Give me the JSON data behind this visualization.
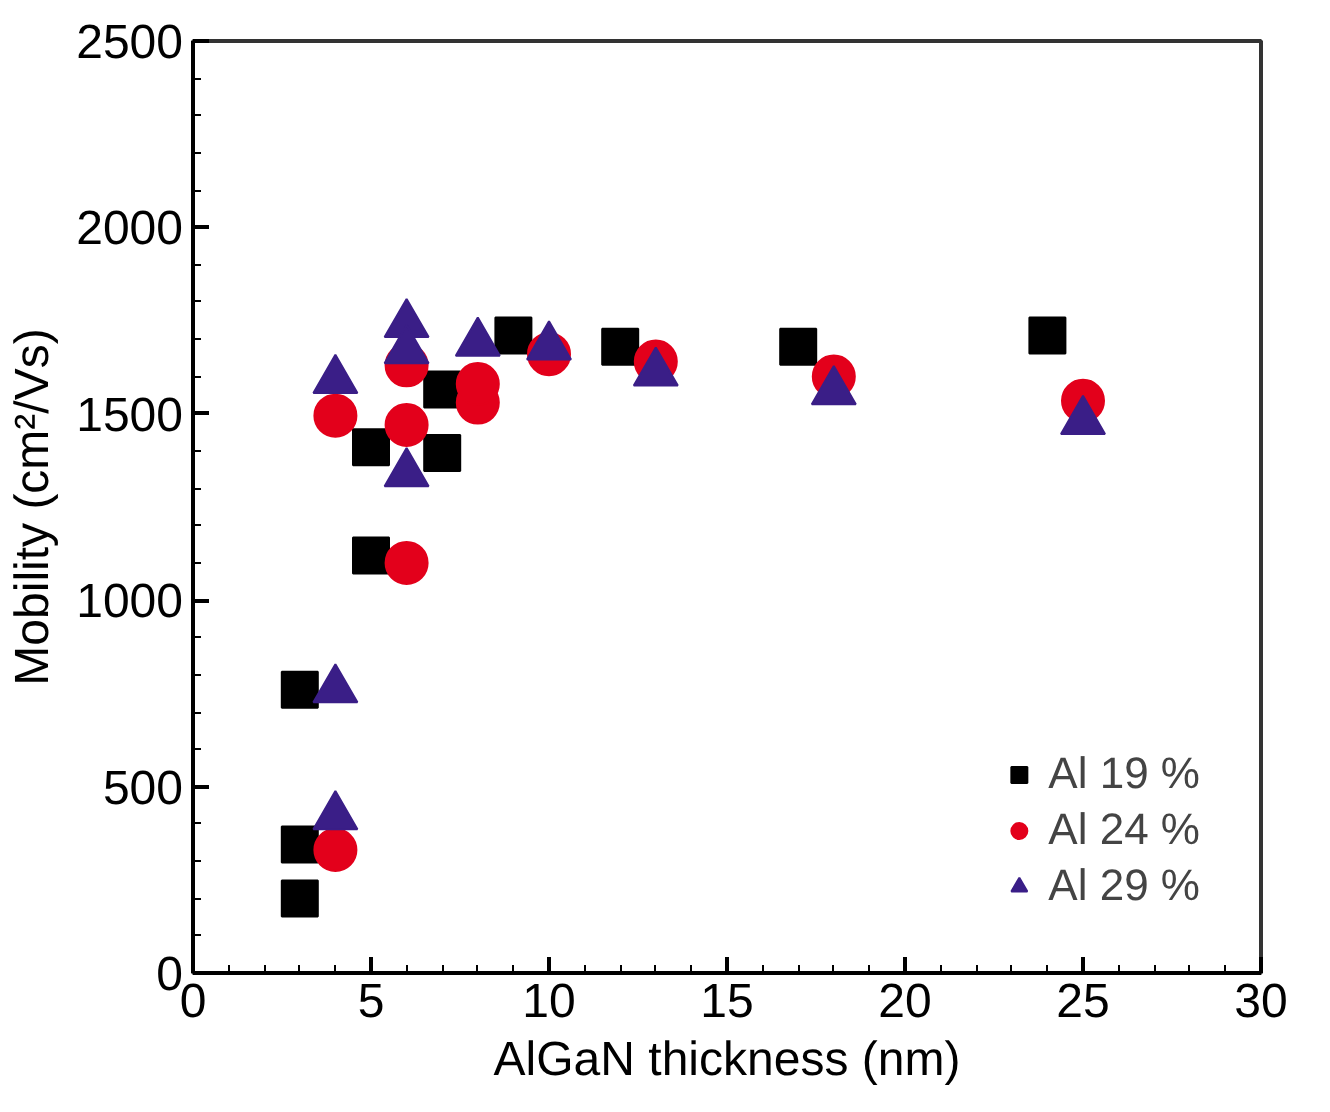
{
  "chart_data": {
    "type": "scatter",
    "xlabel": "AlGaN thickness (nm)",
    "ylabel": "Mobility (cm²/Vs)",
    "xlim": [
      0,
      30
    ],
    "ylim": [
      0,
      2500
    ],
    "xticks": [
      0,
      5,
      10,
      15,
      20,
      25,
      30
    ],
    "yticks": [
      0,
      500,
      1000,
      1500,
      2000,
      2500
    ],
    "grid": false,
    "legend": "bottom right",
    "series": [
      {
        "name": "Al 19 %",
        "color": "#000000",
        "marker": "square",
        "x": [
          3,
          3,
          3,
          5,
          5,
          7,
          7,
          9,
          12,
          17,
          24
        ],
        "values": [
          760,
          345,
          200,
          1410,
          1120,
          1395,
          1565,
          1710,
          1680,
          1680,
          1710
        ]
      },
      {
        "name": "Al 24 %",
        "color": "#e3001b",
        "marker": "circle",
        "x": [
          4,
          4,
          6,
          6,
          6,
          8,
          8,
          10,
          13,
          18,
          25
        ],
        "values": [
          1495,
          330,
          1470,
          1100,
          1630,
          1530,
          1580,
          1660,
          1640,
          1600,
          1535
        ]
      },
      {
        "name": "Al 29 %",
        "color": "#3a1e87",
        "marker": "triangle",
        "x": [
          4,
          4,
          4,
          6,
          6,
          6,
          8,
          10,
          13,
          18,
          25
        ],
        "values": [
          1590,
          760,
          420,
          1740,
          1670,
          1340,
          1690,
          1680,
          1610,
          1560,
          1480
        ]
      }
    ]
  }
}
